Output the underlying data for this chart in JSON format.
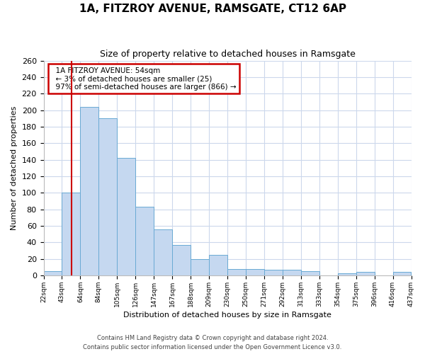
{
  "title": "1A, FITZROY AVENUE, RAMSGATE, CT12 6AP",
  "subtitle": "Size of property relative to detached houses in Ramsgate",
  "xlabel": "Distribution of detached houses by size in Ramsgate",
  "ylabel": "Number of detached properties",
  "bar_values": [
    5,
    100,
    204,
    190,
    142,
    83,
    56,
    37,
    20,
    25,
    8,
    8,
    7,
    7,
    5,
    0,
    3,
    4,
    0,
    4
  ],
  "tick_labels": [
    "22sqm",
    "43sqm",
    "64sqm",
    "84sqm",
    "105sqm",
    "126sqm",
    "147sqm",
    "167sqm",
    "188sqm",
    "209sqm",
    "230sqm",
    "250sqm",
    "271sqm",
    "292sqm",
    "313sqm",
    "333sqm",
    "354sqm",
    "375sqm",
    "396sqm",
    "416sqm",
    "437sqm"
  ],
  "bar_color": "#c5d8f0",
  "bar_edge_color": "#6aaad4",
  "marker_color": "#cc0000",
  "ylim": [
    0,
    260
  ],
  "yticks": [
    0,
    20,
    40,
    60,
    80,
    100,
    120,
    140,
    160,
    180,
    200,
    220,
    240,
    260
  ],
  "annotation_title": "1A FITZROY AVENUE: 54sqm",
  "annotation_line1": "← 3% of detached houses are smaller (25)",
  "annotation_line2": "97% of semi-detached houses are larger (866) →",
  "annotation_box_color": "#ffffff",
  "annotation_box_edge": "#cc0000",
  "footer_line1": "Contains HM Land Registry data © Crown copyright and database right 2024.",
  "footer_line2": "Contains public sector information licensed under the Open Government Licence v3.0.",
  "background_color": "#ffffff",
  "grid_color": "#ccd8ec"
}
